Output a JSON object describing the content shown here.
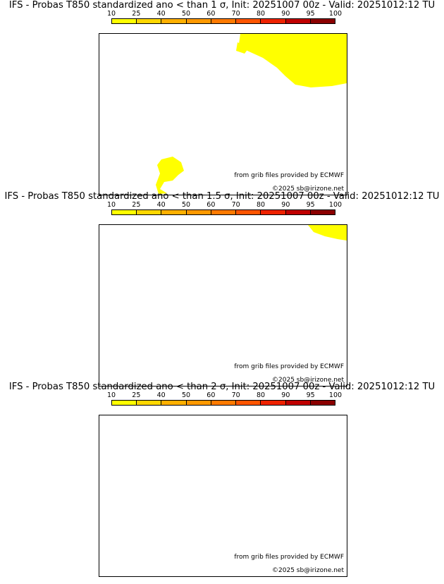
{
  "colorbar": {
    "ticks": [
      "10",
      "25",
      "40",
      "50",
      "60",
      "70",
      "80",
      "90",
      "95",
      "100"
    ],
    "colors": [
      "#ffff00",
      "#ffd700",
      "#ffb000",
      "#ff9900",
      "#ff7a00",
      "#ff5500",
      "#ee2200",
      "#c00000",
      "#8b0000"
    ]
  },
  "credits": {
    "grib": "from grib files provided by ECMWF",
    "copyright": "©2025 sb@irizone.net"
  },
  "panels": [
    {
      "title": "IFS - Probas T850  standardized ano < than 1 σ, Init: 20251007 00z - Valid: 20251012:12 TU"
    },
    {
      "title": "IFS - Probas T850  standardized ano < than 1.5 σ, Init: 20251007 00z - Valid: 20251012:12 TU"
    },
    {
      "title": "IFS - Probas T850  standardized ano < than 2 σ, Init: 20251007 00z - Valid: 20251012:12 TU"
    }
  ],
  "colors": {
    "coast": "#000000",
    "river": "#3344dd",
    "border": "#9a9a9a",
    "prob_low": "#ffff00"
  }
}
